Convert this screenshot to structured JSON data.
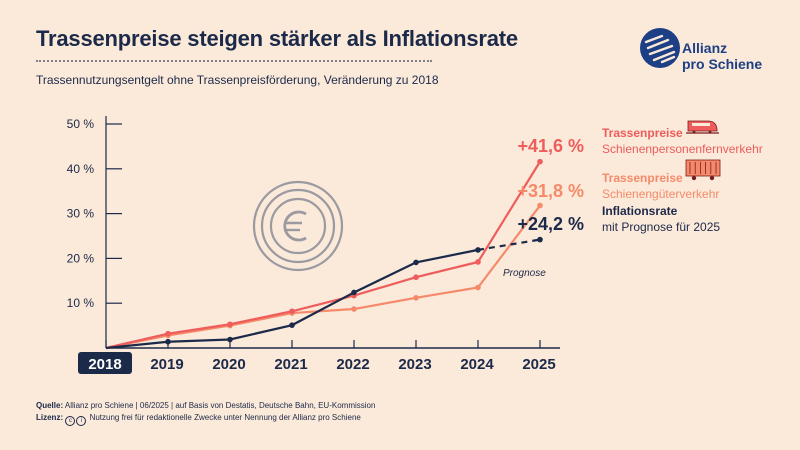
{
  "header": {
    "title": "Trassenpreise steigen stärker als Inflationsrate",
    "subtitle": "Trassennutzungsentgelt ohne Trassenpreisförderung, Veränderung zu 2018"
  },
  "logo": {
    "line1": "Allianz",
    "line2": "pro Schiene"
  },
  "footer": {
    "source_label": "Quelle:",
    "source_text": "Allianz pro Schiene | 06/2025 | auf Basis von Destatis, Deutsche Bahn, EU-Kommission",
    "license_label": "Lizenz:",
    "license_text": "Nutzung frei für redaktionelle Zwecke unter Nennung der Allianz pro Schiene"
  },
  "colors": {
    "background": "#fbe9d9",
    "navy": "#1c2a4a",
    "fernverkehr": "#ee5c5c",
    "gueterverkehr": "#f58a6a",
    "logo_blue": "#1c3f85",
    "icon_gray": "#9a9aa0"
  },
  "chart_data": {
    "type": "line",
    "categories": [
      "2018",
      "2019",
      "2020",
      "2021",
      "2022",
      "2023",
      "2024",
      "2025"
    ],
    "y_ticks": [
      10,
      20,
      30,
      40,
      50
    ],
    "y_tick_labels": [
      "10 %",
      "20 %",
      "30 %",
      "40 %",
      "50 %"
    ],
    "ylim": [
      0,
      50
    ],
    "highlighted_category": "2018",
    "forecast_label": "Prognose",
    "series": [
      {
        "name": "Trassenpreise Schienenpersonenfernverkehr",
        "key": "fernverkehr",
        "label_bold": "Trassenpreise",
        "label_sub": "Schienenpersonenfernverkehr",
        "end_value_label": "+41,6 %",
        "values": [
          0,
          3.2,
          5.3,
          8.2,
          11.7,
          15.8,
          19.2,
          41.6
        ],
        "icon": "train-icon"
      },
      {
        "name": "Trassenpreise Schienengüterverkehr",
        "key": "gueterverkehr",
        "label_bold": "Trassenpreise",
        "label_sub": "Schienengüterverkehr",
        "end_value_label": "+31,8 %",
        "values": [
          0,
          2.8,
          5.0,
          7.8,
          8.7,
          11.2,
          13.5,
          31.8
        ],
        "icon": "freight-wagon-icon"
      },
      {
        "name": "Inflationsrate",
        "key": "inflation",
        "label_bold": "Inflationsrate",
        "label_sub": "mit Prognose für 2025",
        "end_value_label": "+24,2 %",
        "values": [
          0,
          1.4,
          1.9,
          5.1,
          12.4,
          19.1,
          21.9,
          24.2
        ],
        "forecast_from_index": 6
      }
    ]
  }
}
